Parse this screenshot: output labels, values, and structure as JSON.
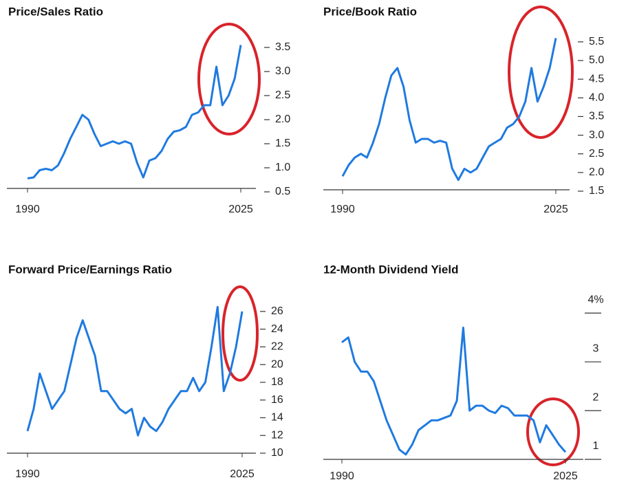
{
  "chart_data": [
    {
      "type": "line",
      "title": "Price/Sales Ratio",
      "color": "#1f7ae0",
      "x": [
        1990,
        1991,
        1992,
        1993,
        1994,
        1995,
        1996,
        1997,
        1998,
        1999,
        2000,
        2001,
        2002,
        2003,
        2004,
        2005,
        2006,
        2007,
        2008,
        2009,
        2010,
        2011,
        2012,
        2013,
        2014,
        2015,
        2016,
        2017,
        2018,
        2019,
        2020,
        2021,
        2022,
        2023,
        2024,
        2025
      ],
      "values": [
        0.78,
        0.8,
        0.95,
        0.98,
        0.95,
        1.05,
        1.3,
        1.6,
        1.85,
        2.1,
        2.0,
        1.7,
        1.45,
        1.5,
        1.55,
        1.5,
        1.55,
        1.5,
        1.1,
        0.8,
        1.15,
        1.2,
        1.35,
        1.6,
        1.75,
        1.78,
        1.85,
        2.1,
        2.15,
        2.3,
        2.3,
        3.1,
        2.3,
        2.5,
        2.85,
        3.55
      ],
      "xlim": [
        1990,
        2025
      ],
      "xticks": [
        1990,
        2025
      ],
      "ylim": [
        0.5,
        3.6
      ],
      "yticks": [
        0.5,
        {
          "value": 1,
          "label": "1.0"
        },
        1.5,
        {
          "value": 2,
          "label": "2.0"
        },
        2.5,
        {
          "value": 3,
          "label": "3.0"
        },
        3.5
      ]
    },
    {
      "type": "line",
      "title": "Price/Book Ratio",
      "color": "#1f7ae0",
      "x": [
        1990,
        1991,
        1992,
        1993,
        1994,
        1995,
        1996,
        1997,
        1998,
        1999,
        2000,
        2001,
        2002,
        2003,
        2004,
        2005,
        2006,
        2007,
        2008,
        2009,
        2010,
        2011,
        2012,
        2013,
        2014,
        2015,
        2016,
        2017,
        2018,
        2019,
        2020,
        2021,
        2022,
        2023,
        2024,
        2025
      ],
      "values": [
        1.9,
        2.2,
        2.4,
        2.5,
        2.4,
        2.8,
        3.3,
        4.0,
        4.6,
        4.8,
        4.3,
        3.4,
        2.8,
        2.9,
        2.9,
        2.8,
        2.85,
        2.8,
        2.1,
        1.8,
        2.1,
        2.0,
        2.1,
        2.4,
        2.7,
        2.8,
        2.9,
        3.2,
        3.3,
        3.5,
        3.9,
        4.8,
        3.9,
        4.3,
        4.8,
        5.6
      ],
      "xlim": [
        1990,
        2025
      ],
      "xticks": [
        1990,
        2025
      ],
      "ylim": [
        1.5,
        5.7
      ],
      "yticks": [
        1.5,
        {
          "value": 2,
          "label": "2.0"
        },
        2.5,
        {
          "value": 3,
          "label": "3.0"
        },
        3.5,
        {
          "value": 4,
          "label": "4.0"
        },
        4.5,
        {
          "value": 5,
          "label": "5.0"
        },
        5.5
      ]
    },
    {
      "type": "line",
      "title": "Forward Price/Earnings Ratio",
      "color": "#1f7ae0",
      "x": [
        1990,
        1991,
        1992,
        1993,
        1994,
        1995,
        1996,
        1997,
        1998,
        1999,
        2000,
        2001,
        2002,
        2003,
        2004,
        2005,
        2006,
        2007,
        2008,
        2009,
        2010,
        2011,
        2012,
        2013,
        2014,
        2015,
        2016,
        2017,
        2018,
        2019,
        2020,
        2021,
        2022,
        2023,
        2024,
        2025
      ],
      "values": [
        12.5,
        15,
        19,
        17,
        15,
        16,
        17,
        20,
        23,
        25,
        23,
        21,
        17,
        17,
        16,
        15,
        14.5,
        15,
        12,
        14,
        13,
        12.5,
        13.5,
        15,
        16,
        17,
        17,
        18.5,
        17,
        18,
        22,
        26.5,
        17,
        19,
        22,
        26
      ],
      "xlim": [
        1990,
        2025
      ],
      "xticks": [
        1990,
        2025
      ],
      "ylim": [
        10,
        27
      ],
      "yticks": [
        10,
        12,
        14,
        16,
        18,
        20,
        22,
        24,
        26
      ]
    },
    {
      "type": "line",
      "title": "12-Month Dividend Yield",
      "color": "#1f7ae0",
      "x": [
        1990,
        1991,
        1992,
        1993,
        1994,
        1995,
        1996,
        1997,
        1998,
        1999,
        2000,
        2001,
        2002,
        2003,
        2004,
        2005,
        2006,
        2007,
        2008,
        2009,
        2010,
        2011,
        2012,
        2013,
        2014,
        2015,
        2016,
        2017,
        2018,
        2019,
        2020,
        2021,
        2022,
        2023,
        2024,
        2025
      ],
      "values": [
        3.4,
        3.5,
        3.0,
        2.8,
        2.8,
        2.6,
        2.2,
        1.8,
        1.5,
        1.2,
        1.1,
        1.3,
        1.6,
        1.7,
        1.8,
        1.8,
        1.85,
        1.9,
        2.2,
        3.7,
        2.0,
        2.1,
        2.1,
        2.0,
        1.95,
        2.1,
        2.05,
        1.9,
        1.9,
        1.9,
        1.8,
        1.35,
        1.7,
        1.5,
        1.3,
        1.15
      ],
      "xlim": [
        1990,
        2025
      ],
      "xticks": [
        1990,
        2025
      ],
      "ylim": [
        1,
        4.3
      ],
      "yticks": [
        1,
        2,
        3,
        {
          "value": 4,
          "label": "4%"
        }
      ]
    }
  ]
}
